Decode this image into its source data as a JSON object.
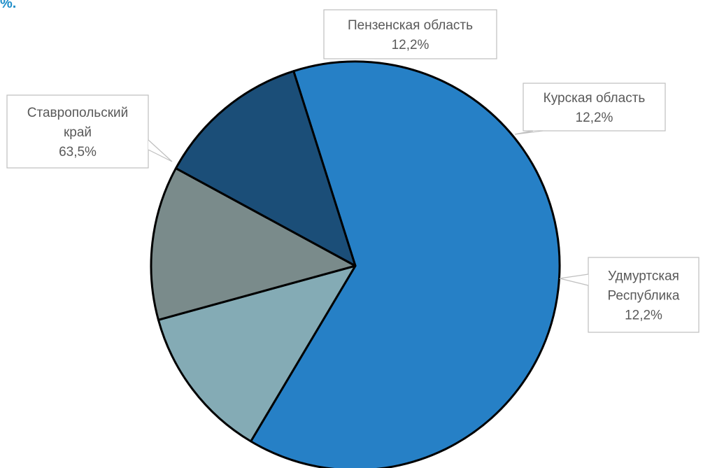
{
  "page": {
    "corner_text": "%."
  },
  "chart_data": {
    "type": "pie",
    "title": "",
    "start_angle_deg": -17.6,
    "slices": [
      {
        "label": "Ставропольский край",
        "label_lines": [
          "Ставропольский",
          "край"
        ],
        "value": 63.5,
        "value_text": "63,5%",
        "color": "#2680c6"
      },
      {
        "label": "Пензенская область",
        "label_lines": [
          "Пензенская область"
        ],
        "value": 12.2,
        "value_text": "12,2%",
        "color": "#84abb5"
      },
      {
        "label": "Курская область",
        "label_lines": [
          "Курская область"
        ],
        "value": 12.2,
        "value_text": "12,2%",
        "color": "#7a8b8b"
      },
      {
        "label": "Удмуртская Республика",
        "label_lines": [
          "Удмуртская",
          "Республика"
        ],
        "value": 12.2,
        "value_text": "12,2%",
        "color": "#1b4e78"
      }
    ]
  }
}
